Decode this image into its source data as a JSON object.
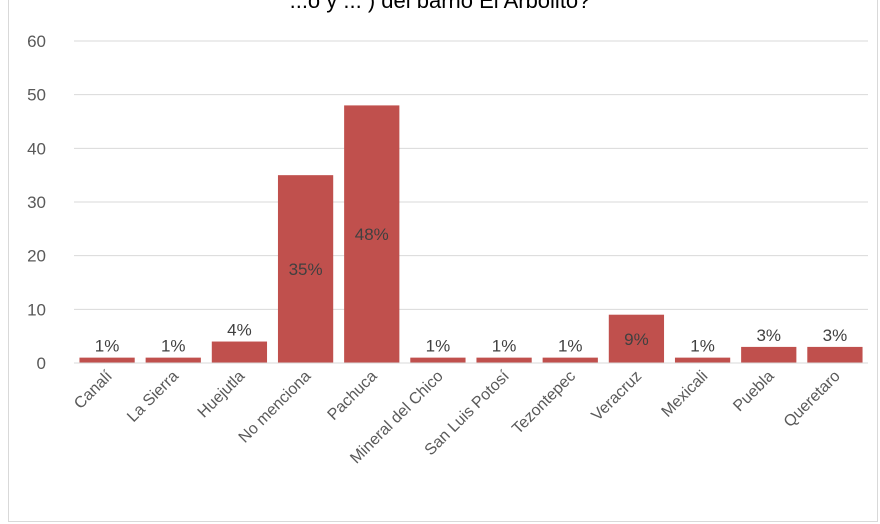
{
  "chart_data": {
    "type": "bar",
    "title": "...o y ... ) del barrio El Arbolito?",
    "xlabel": "",
    "ylabel": "",
    "ylim": [
      0,
      60
    ],
    "yticks": [
      0,
      10,
      20,
      30,
      40,
      50,
      60
    ],
    "grid": true,
    "legend": "none",
    "bar_color": "#c0504d",
    "categories": [
      "Canalí",
      "La Sierra",
      "Huejutla",
      "No menciona",
      "Pachuca",
      "Mineral del Chico",
      "San Luis Potosí",
      "Tezontepec",
      "Veracruz",
      "Mexicali",
      "Puebla",
      "Queretaro"
    ],
    "values": [
      1,
      1,
      4,
      35,
      48,
      1,
      1,
      1,
      9,
      1,
      3,
      3
    ],
    "data_labels": [
      "1%",
      "1%",
      "4%",
      "35%",
      "48%",
      "1%",
      "1%",
      "1%",
      "9%",
      "1%",
      "3%",
      "3%"
    ]
  }
}
